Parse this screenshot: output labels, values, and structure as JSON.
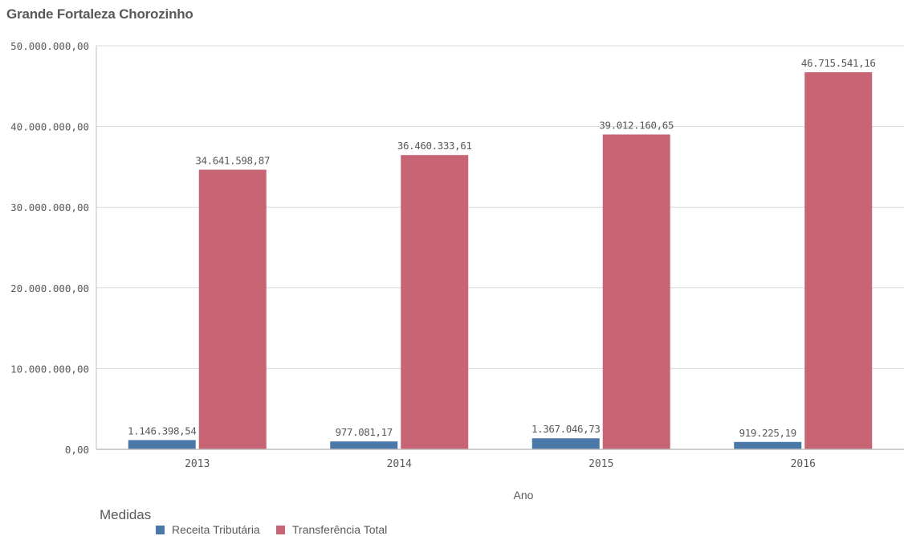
{
  "title": "Grande Fortaleza Chorozinho",
  "colors": {
    "receita": "#4a78a8",
    "transferencia": "#c86575",
    "grid": "#d9d9d9",
    "axis": "#bfbfbf",
    "text": "#595959"
  },
  "legend": {
    "title": "Medidas",
    "items": [
      "Receita Tributária",
      "Transferência Total"
    ]
  },
  "chart_data": {
    "type": "bar",
    "title": "Grande Fortaleza Chorozinho",
    "xlabel": "Ano",
    "ylabel": "",
    "categories": [
      "2013",
      "2014",
      "2015",
      "2016"
    ],
    "ylim": [
      0,
      50000000
    ],
    "yticks": [
      0,
      10000000,
      20000000,
      30000000,
      40000000,
      50000000
    ],
    "ytick_labels": [
      "0,00",
      "10.000.000,00",
      "20.000.000,00",
      "30.000.000,00",
      "40.000.000,00",
      "50.000.000,00"
    ],
    "grid": true,
    "legend_position": "bottom-left",
    "series": [
      {
        "name": "Receita Tributária",
        "values": [
          1146398.54,
          977081.17,
          1367046.73,
          919225.19
        ],
        "labels": [
          "1.146.398,54",
          "977.081,17",
          "1.367.046,73",
          "919.225,19"
        ]
      },
      {
        "name": "Transferência Total",
        "values": [
          34641598.87,
          36460333.61,
          39012160.65,
          46715541.16
        ],
        "labels": [
          "34.641.598,87",
          "36.460.333,61",
          "39.012.160,65",
          "46.715.541,16"
        ]
      }
    ]
  }
}
